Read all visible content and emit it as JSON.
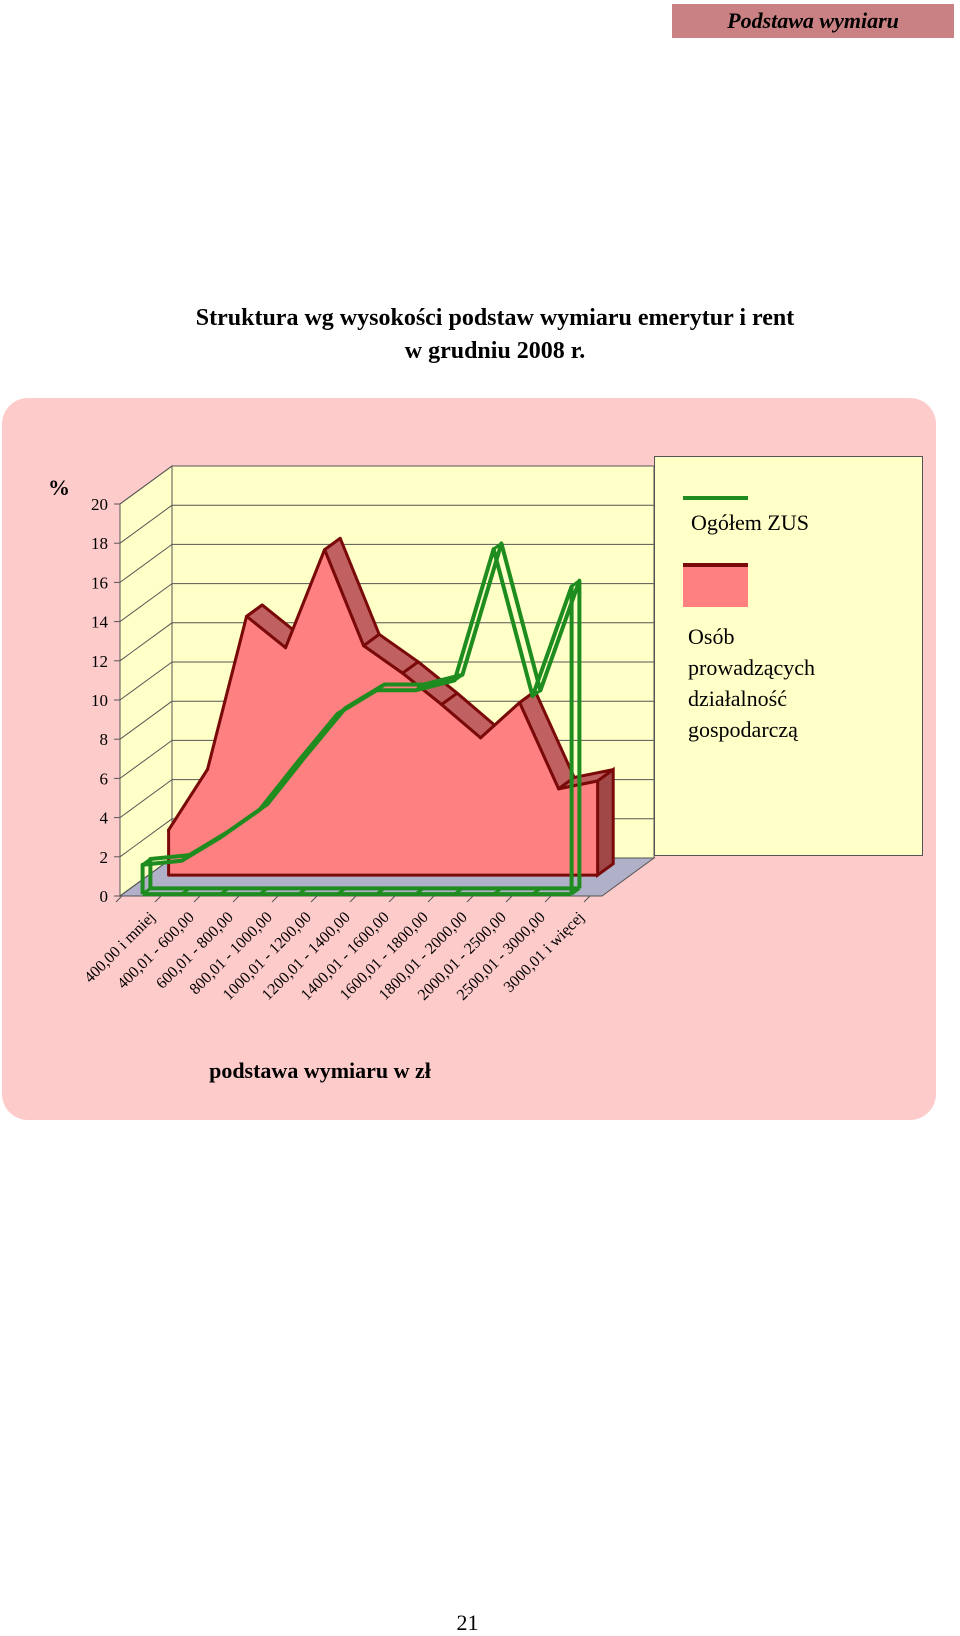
{
  "header": {
    "section_label": "Podstawa wymiaru"
  },
  "title": {
    "line1": "Struktura wg wysokości podstaw wymiaru emerytur i rent",
    "line2": "w grudniu 2008 r."
  },
  "page_number": "21",
  "chart_data": {
    "type": "area",
    "title": "Struktura wg wysokości podstaw wymiaru emerytur i rent w grudniu 2008 r.",
    "xlabel": "podstawa wymiaru w zł",
    "ylabel": "%",
    "ylim": [
      0,
      20
    ],
    "yticks": [
      0,
      2,
      4,
      6,
      8,
      10,
      12,
      14,
      16,
      18,
      20
    ],
    "grid": true,
    "legend_position": "right",
    "categories": [
      "400,00 i mniej",
      "400,01 - 600,00",
      "600,01 - 800,00",
      "800,01 - 1000,00",
      "1000,01 - 1200,00",
      "1200,01 - 1400,00",
      "1400,01 - 1600,00",
      "1600,01 - 1800,00",
      "1800,01 - 2000,00",
      "2000,01 - 2500,00",
      "2500,01 - 3000,00",
      "3000,01 i więcej"
    ],
    "series": [
      {
        "name": "Ogółem ZUS",
        "style": "line",
        "color": "#1e8c1e",
        "values": [
          1.5,
          1.7,
          2.9,
          4.3,
          6.8,
          9.2,
          10.4,
          10.4,
          10.9,
          17.6,
          10.1,
          15.7
        ]
      },
      {
        "name": "Osób prowadzących działalność gospodarczą",
        "style": "area",
        "color": "#ff8080",
        "edge_color": "#7a0a0a",
        "values": [
          2.3,
          5.4,
          13.2,
          11.6,
          16.6,
          11.7,
          10.3,
          8.7,
          7.0,
          8.8,
          4.4,
          4.8
        ]
      }
    ]
  }
}
